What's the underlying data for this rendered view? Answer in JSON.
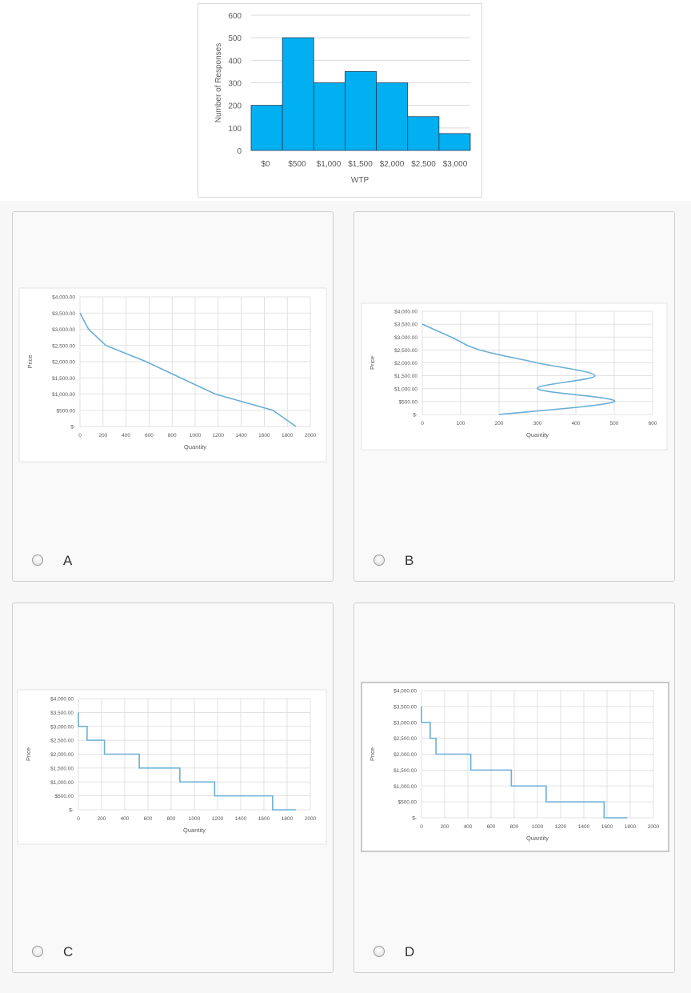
{
  "chart_data": [
    {
      "id": "histogram",
      "type": "bar",
      "xlabel": "WTP",
      "ylabel": "Number of Responses",
      "ylim": [
        0,
        600
      ],
      "yticks": [
        "0",
        "100",
        "200",
        "300",
        "400",
        "500",
        "600"
      ],
      "xticks": [
        "$0",
        "$500",
        "$1,000",
        "$1,500",
        "$2,000",
        "$2,500",
        "$3,000"
      ],
      "bins": [
        {
          "from": 0,
          "to": 500,
          "value": 200
        },
        {
          "from": 500,
          "to": 1000,
          "value": 500
        },
        {
          "from": 1000,
          "to": 1500,
          "value": 300
        },
        {
          "from": 1500,
          "to": 2000,
          "value": 350
        },
        {
          "from": 2000,
          "to": 2500,
          "value": 300
        },
        {
          "from": 2500,
          "to": 3000,
          "value": 150
        },
        {
          "from": 3000,
          "to": 3500,
          "value": 75
        }
      ],
      "bar_color": "#00b0f0",
      "grid": true
    },
    {
      "id": "A",
      "type": "line",
      "xlabel": "Quantity",
      "ylabel": "Price",
      "xlim": [
        0,
        2000
      ],
      "ylim": [
        0,
        4000
      ],
      "xticks": [
        "0",
        "200",
        "400",
        "600",
        "800",
        "1000",
        "1200",
        "1400",
        "1600",
        "1800",
        "2000"
      ],
      "yticks": [
        "$-",
        "$500.00",
        "$1,000.00",
        "$1,500.00",
        "$2,000.00",
        "$2,500.00",
        "$3,000.00",
        "$3,500.00",
        "$4,000.00"
      ],
      "series": [
        {
          "x": [
            0,
            75,
            225,
            575,
            875,
            1175,
            1675,
            1875
          ],
          "y": [
            3500,
            3000,
            2500,
            2000,
            1500,
            1000,
            500,
            0
          ]
        }
      ],
      "line_color": "#6baed6",
      "grid": true
    },
    {
      "id": "B",
      "type": "line",
      "xlabel": "Quantity",
      "ylabel": "Price",
      "xlim": [
        0,
        600
      ],
      "ylim": [
        0,
        4000
      ],
      "xticks": [
        "0",
        "100",
        "200",
        "300",
        "400",
        "500",
        "600"
      ],
      "yticks": [
        "$-",
        "$500.00",
        "$1,000.00",
        "$1,500.00",
        "$2,000.00",
        "$2,500.00",
        "$3,000.00",
        "$3,500.00",
        "$4,000.00"
      ],
      "series": [
        {
          "x": [
            200,
            500,
            300,
            450,
            300,
            150,
            75,
            0
          ],
          "y": [
            0,
            500,
            1000,
            1500,
            2000,
            2500,
            3000,
            3500
          ],
          "smooth": true
        }
      ],
      "line_color": "#6baed6",
      "grid": true
    },
    {
      "id": "C",
      "type": "line",
      "xlabel": "Quantity",
      "ylabel": "Price",
      "xlim": [
        0,
        2000
      ],
      "ylim": [
        0,
        4000
      ],
      "xticks": [
        "0",
        "200",
        "400",
        "600",
        "800",
        "1000",
        "1200",
        "1400",
        "1600",
        "1800",
        "2000"
      ],
      "yticks": [
        "$-",
        "$500.00",
        "$1,000.00",
        "$1,500.00",
        "$2,000.00",
        "$2,500.00",
        "$3,000.00",
        "$3,500.00",
        "$4,000.00"
      ],
      "series": [
        {
          "x": [
            0,
            0,
            75,
            75,
            225,
            225,
            525,
            525,
            875,
            875,
            1175,
            1175,
            1675,
            1675,
            1875
          ],
          "y": [
            3500,
            3000,
            3000,
            2500,
            2500,
            2000,
            2000,
            1500,
            1500,
            1000,
            1000,
            500,
            500,
            0,
            0
          ]
        }
      ],
      "line_color": "#6baed6",
      "grid": true
    },
    {
      "id": "D",
      "type": "line",
      "xlabel": "Quantity",
      "ylabel": "Price",
      "xlim": [
        0,
        2000
      ],
      "ylim": [
        0,
        4000
      ],
      "xticks": [
        "0",
        "200",
        "400",
        "600",
        "800",
        "1000",
        "1200",
        "1400",
        "1600",
        "1800",
        "2000"
      ],
      "yticks": [
        "$-",
        "$500.00",
        "$1,000.00",
        "$1,500.00",
        "$2,000.00",
        "$2,500.00",
        "$3,000.00",
        "$3,500.00",
        "$4,000.00"
      ],
      "series": [
        {
          "x": [
            0,
            0,
            75,
            75,
            125,
            125,
            425,
            425,
            775,
            775,
            1075,
            1075,
            1575,
            1575,
            1775
          ],
          "y": [
            3500,
            3000,
            3000,
            2500,
            2500,
            2000,
            2000,
            1500,
            1500,
            1000,
            1000,
            500,
            500,
            0,
            0
          ]
        }
      ],
      "line_color": "#6baed6",
      "grid": true
    }
  ],
  "options": [
    {
      "letter": "A"
    },
    {
      "letter": "B"
    },
    {
      "letter": "C"
    },
    {
      "letter": "D"
    }
  ],
  "colors": {
    "grid": "#d9d9d9",
    "axis_text": "#595959"
  }
}
